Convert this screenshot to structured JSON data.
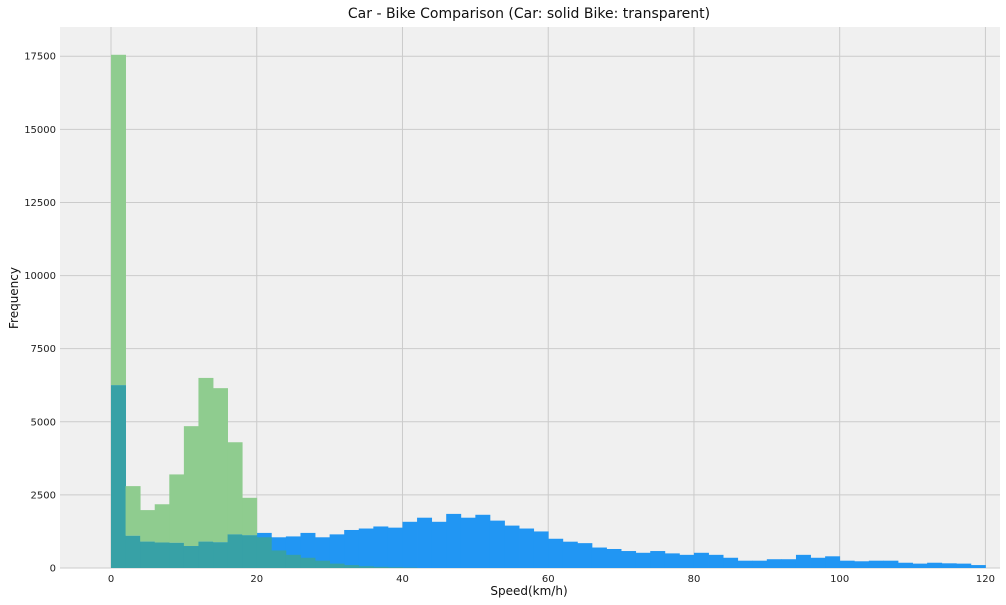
{
  "chart_data": {
    "type": "bar",
    "title": "Car - Bike Comparison (Car: solid Bike: transparent)",
    "xlabel": "Speed(km/h)",
    "ylabel": "Frequency",
    "xlim": [
      -7,
      122
    ],
    "ylim": [
      0,
      18500
    ],
    "x_ticks": [
      0,
      20,
      40,
      60,
      80,
      100,
      120
    ],
    "y_ticks": [
      0,
      2500,
      5000,
      7500,
      10000,
      12500,
      15000,
      17500
    ],
    "grid": true,
    "bin_width": 2,
    "colors": {
      "car": "#2196f3",
      "bike": "#8fcc8f",
      "overlap": "#37a1a6",
      "plot_bg": "#f0f0f0",
      "grid": "#cbcbcb"
    },
    "series": [
      {
        "key": "car",
        "style": "solid",
        "bins": [
          {
            "x": 0,
            "v": 6250
          },
          {
            "x": 2,
            "v": 1100
          },
          {
            "x": 4,
            "v": 900
          },
          {
            "x": 6,
            "v": 870
          },
          {
            "x": 8,
            "v": 860
          },
          {
            "x": 10,
            "v": 750
          },
          {
            "x": 12,
            "v": 900
          },
          {
            "x": 14,
            "v": 880
          },
          {
            "x": 16,
            "v": 1150
          },
          {
            "x": 18,
            "v": 1120
          },
          {
            "x": 20,
            "v": 1200
          },
          {
            "x": 22,
            "v": 1050
          },
          {
            "x": 24,
            "v": 1080
          },
          {
            "x": 26,
            "v": 1200
          },
          {
            "x": 28,
            "v": 1050
          },
          {
            "x": 30,
            "v": 1150
          },
          {
            "x": 32,
            "v": 1300
          },
          {
            "x": 34,
            "v": 1350
          },
          {
            "x": 36,
            "v": 1420
          },
          {
            "x": 38,
            "v": 1380
          },
          {
            "x": 40,
            "v": 1580
          },
          {
            "x": 42,
            "v": 1720
          },
          {
            "x": 44,
            "v": 1580
          },
          {
            "x": 46,
            "v": 1850
          },
          {
            "x": 48,
            "v": 1720
          },
          {
            "x": 50,
            "v": 1820
          },
          {
            "x": 52,
            "v": 1620
          },
          {
            "x": 54,
            "v": 1450
          },
          {
            "x": 56,
            "v": 1350
          },
          {
            "x": 58,
            "v": 1250
          },
          {
            "x": 60,
            "v": 1000
          },
          {
            "x": 62,
            "v": 900
          },
          {
            "x": 64,
            "v": 850
          },
          {
            "x": 66,
            "v": 700
          },
          {
            "x": 68,
            "v": 650
          },
          {
            "x": 70,
            "v": 580
          },
          {
            "x": 72,
            "v": 520
          },
          {
            "x": 74,
            "v": 580
          },
          {
            "x": 76,
            "v": 500
          },
          {
            "x": 78,
            "v": 450
          },
          {
            "x": 80,
            "v": 520
          },
          {
            "x": 82,
            "v": 450
          },
          {
            "x": 84,
            "v": 350
          },
          {
            "x": 86,
            "v": 250
          },
          {
            "x": 88,
            "v": 250
          },
          {
            "x": 90,
            "v": 300
          },
          {
            "x": 92,
            "v": 300
          },
          {
            "x": 94,
            "v": 450
          },
          {
            "x": 96,
            "v": 350
          },
          {
            "x": 98,
            "v": 400
          },
          {
            "x": 100,
            "v": 250
          },
          {
            "x": 102,
            "v": 230
          },
          {
            "x": 104,
            "v": 250
          },
          {
            "x": 106,
            "v": 250
          },
          {
            "x": 108,
            "v": 180
          },
          {
            "x": 110,
            "v": 150
          },
          {
            "x": 112,
            "v": 180
          },
          {
            "x": 114,
            "v": 160
          },
          {
            "x": 116,
            "v": 150
          },
          {
            "x": 118,
            "v": 100
          }
        ]
      },
      {
        "key": "bike",
        "style": "transparent",
        "bins": [
          {
            "x": 0,
            "v": 17550
          },
          {
            "x": 2,
            "v": 2800
          },
          {
            "x": 4,
            "v": 1980
          },
          {
            "x": 6,
            "v": 2180
          },
          {
            "x": 8,
            "v": 3200
          },
          {
            "x": 10,
            "v": 4850
          },
          {
            "x": 12,
            "v": 6500
          },
          {
            "x": 14,
            "v": 6150
          },
          {
            "x": 16,
            "v": 4300
          },
          {
            "x": 18,
            "v": 2400
          },
          {
            "x": 20,
            "v": 1050
          },
          {
            "x": 22,
            "v": 600
          },
          {
            "x": 24,
            "v": 450
          },
          {
            "x": 26,
            "v": 350
          },
          {
            "x": 28,
            "v": 250
          },
          {
            "x": 30,
            "v": 150
          },
          {
            "x": 32,
            "v": 100
          },
          {
            "x": 34,
            "v": 60
          },
          {
            "x": 36,
            "v": 40
          },
          {
            "x": 38,
            "v": 25
          },
          {
            "x": 40,
            "v": 15
          }
        ]
      }
    ]
  }
}
